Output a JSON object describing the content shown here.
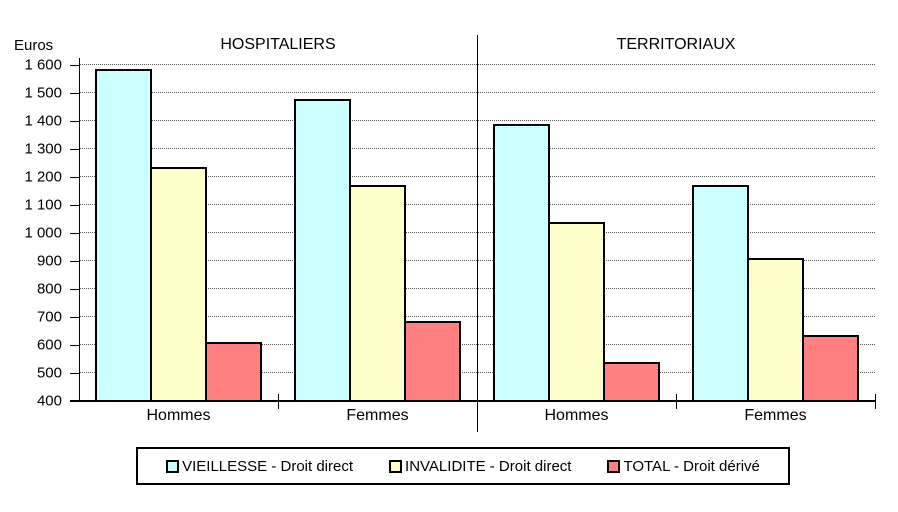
{
  "chart_data": {
    "type": "bar",
    "title": "",
    "ylabel": "Euros",
    "ylim": [
      400,
      1600
    ],
    "ytick_step": 100,
    "grid": "horizontal-dotted",
    "legend_position": "bottom",
    "yticks": [
      {
        "value": 1600,
        "label": "1 600"
      },
      {
        "value": 1500,
        "label": "1 500"
      },
      {
        "value": 1400,
        "label": "1 400"
      },
      {
        "value": 1300,
        "label": "1 300"
      },
      {
        "value": 1200,
        "label": "1 200"
      },
      {
        "value": 1100,
        "label": "1 100"
      },
      {
        "value": 1000,
        "label": "1 000"
      },
      {
        "value": 900,
        "label": "900"
      },
      {
        "value": 800,
        "label": "800"
      },
      {
        "value": 700,
        "label": "700"
      },
      {
        "value": 600,
        "label": "600"
      },
      {
        "value": 500,
        "label": "500"
      },
      {
        "value": 400,
        "label": "400"
      }
    ],
    "series": [
      {
        "name": "VIEILLESSE - Droit direct",
        "color": "#CCFFFF"
      },
      {
        "name": "INVALIDITE - Droit direct",
        "color": "#FFFFCC"
      },
      {
        "name": "TOTAL - Droit dérivé",
        "color": "#FF8080"
      }
    ],
    "panels": [
      {
        "title": "HOSPITALIERS",
        "groups": [
          {
            "label": "Hommes",
            "values": [
              1585,
              1235,
              610
            ]
          },
          {
            "label": "Femmes",
            "values": [
              1480,
              1170,
              685
            ]
          }
        ]
      },
      {
        "title": "TERRITORIAUX",
        "groups": [
          {
            "label": "Hommes",
            "values": [
              1390,
              1040,
              540
            ]
          },
          {
            "label": "Femmes",
            "values": [
              1170,
              910,
              635
            ]
          }
        ]
      }
    ]
  }
}
